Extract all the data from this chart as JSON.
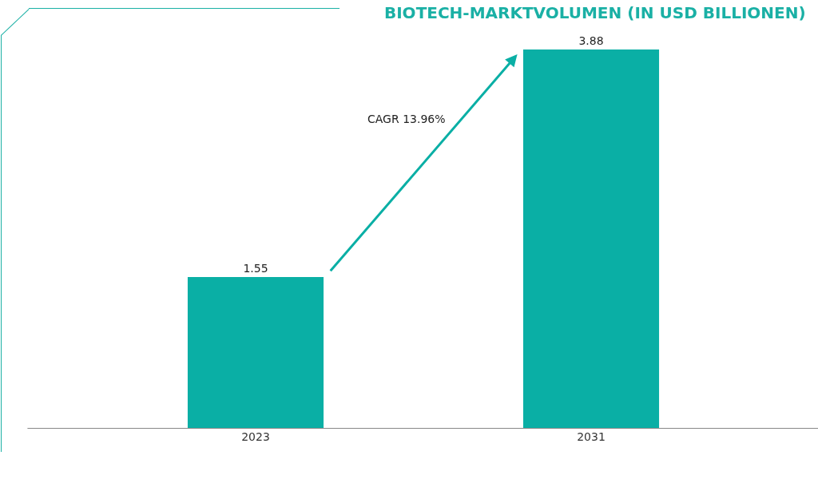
{
  "chart_data": {
    "type": "bar",
    "title": "BIOTECH-MARKTVOLUMEN (IN USD BILLIONEN)",
    "categories": [
      "2023",
      "2031"
    ],
    "values": [
      1.55,
      3.88
    ],
    "color": "#0aafa5",
    "data_labels": true,
    "grid": false,
    "legend": false,
    "tick_labels": "x",
    "annotations": [
      "CAGR 13.96%"
    ]
  }
}
